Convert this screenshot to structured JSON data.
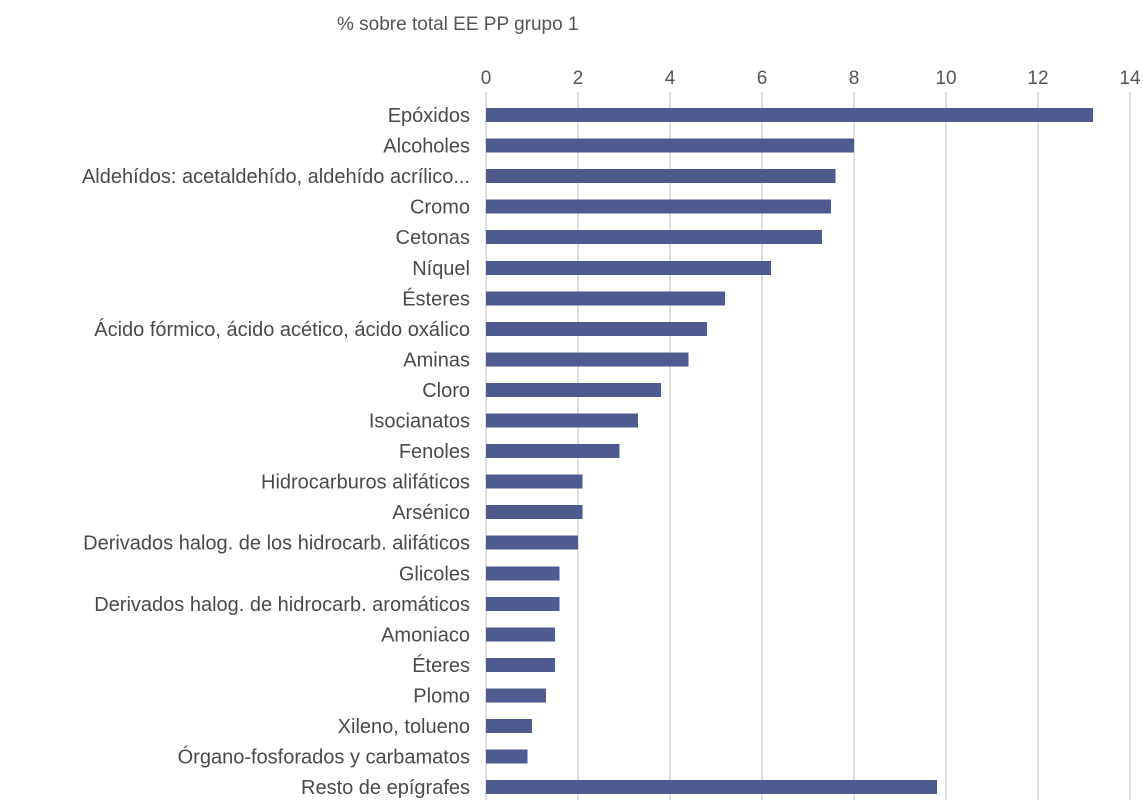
{
  "chart_data": {
    "type": "bar",
    "orientation": "horizontal",
    "title": "",
    "xlabel": "% sobre total EE PP grupo 1",
    "ylabel": "",
    "xlim": [
      0,
      14
    ],
    "xticks": [
      0,
      2,
      4,
      6,
      8,
      10,
      12,
      14
    ],
    "grid": true,
    "legend": "none",
    "bar_color": "#4f5b8f",
    "categories": [
      "Epóxidos",
      "Alcoholes",
      "Aldehídos: acetaldehído, aldehído acrílico...",
      "Cromo",
      "Cetonas",
      "Níquel",
      "Ésteres",
      "Ácido fórmico, ácido acético, ácido oxálico",
      "Aminas",
      "Cloro",
      "Isocianatos",
      "Fenoles",
      "Hidrocarburos alifáticos",
      "Arsénico",
      "Derivados halog. de los hidrocarb. alifáticos",
      "Glicoles",
      "Derivados halog. de hidrocarb. aromáticos",
      "Amoniaco",
      "Éteres",
      "Plomo",
      "Xileno, tolueno",
      "Órgano-fosforados y carbamatos",
      "Resto de epígrafes"
    ],
    "values": [
      13.2,
      8.0,
      7.6,
      7.5,
      7.3,
      6.2,
      5.2,
      4.8,
      4.4,
      3.8,
      3.3,
      2.9,
      2.1,
      2.1,
      2.0,
      1.6,
      1.6,
      1.5,
      1.5,
      1.3,
      1.0,
      0.9,
      9.8
    ]
  }
}
